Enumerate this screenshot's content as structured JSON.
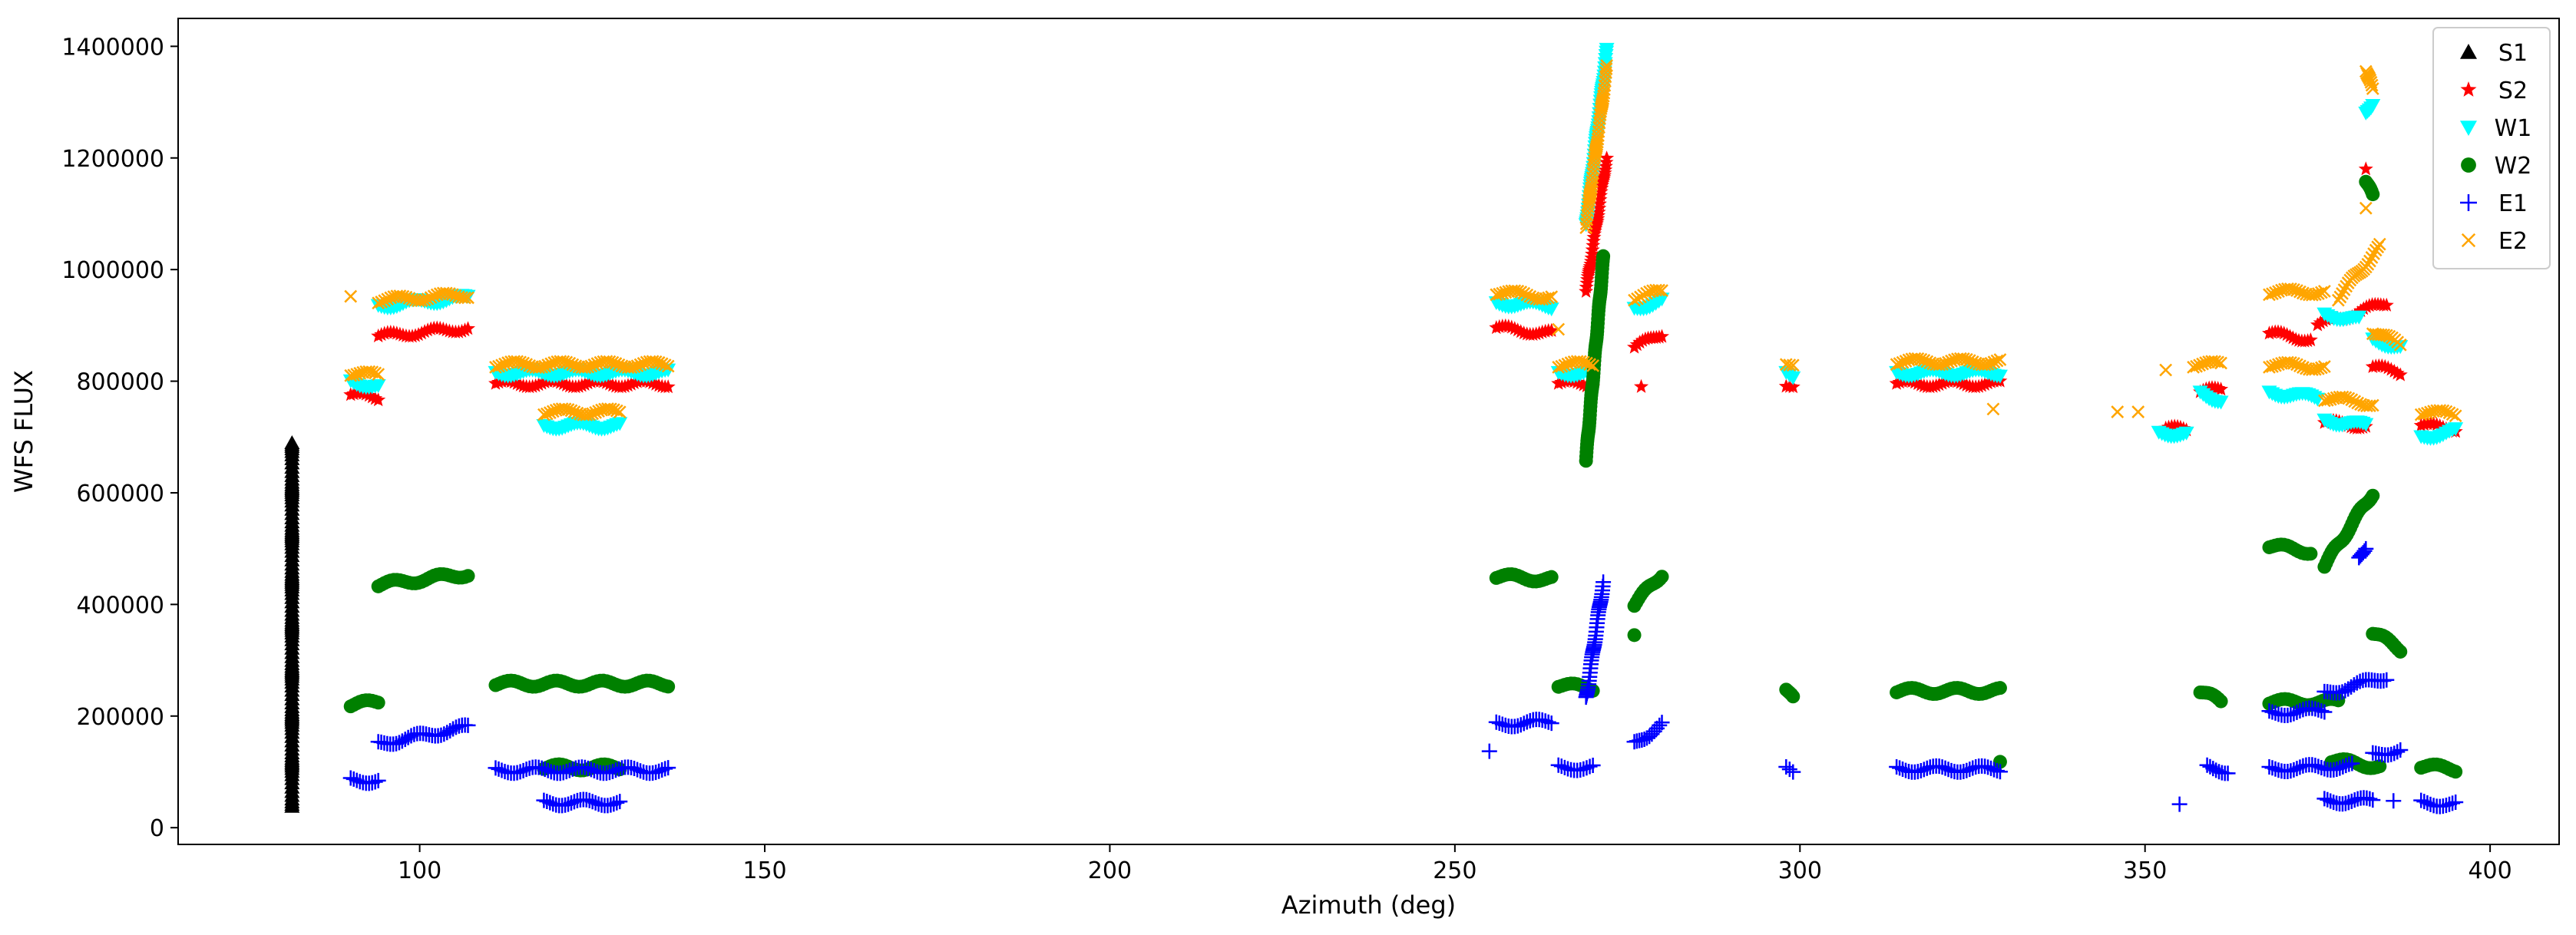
{
  "chart_data": {
    "type": "scatter",
    "title": "",
    "xlabel": "Azimuth (deg)",
    "ylabel": "WFS FLUX",
    "xlim": [
      65,
      410
    ],
    "ylim": [
      -30000,
      1450000
    ],
    "xticks": [
      100,
      150,
      200,
      250,
      300,
      350,
      400
    ],
    "yticks": [
      0,
      200000,
      400000,
      600000,
      800000,
      1000000,
      1200000,
      1400000
    ],
    "xtick_labels": [
      "100",
      "150",
      "200",
      "250",
      "300",
      "350",
      "400"
    ],
    "ytick_labels": [
      "0",
      "200000",
      "400000",
      "600000",
      "800000",
      "1000000",
      "1200000",
      "1400000"
    ],
    "grid": false,
    "legend_position": "top-right",
    "series": [
      {
        "name": "S1",
        "marker": "triangle-up",
        "color": "#000000",
        "segments": [
          {
            "x": [
              81.5,
              81.5
            ],
            "y": [
              40000,
              690000
            ]
          }
        ]
      },
      {
        "name": "S2",
        "marker": "star",
        "color": "#ff0000",
        "segments": [
          {
            "x": [
              90,
              94
            ],
            "y": [
              775000,
              770000
            ]
          },
          {
            "x": [
              94,
              107
            ],
            "y": [
              880000,
              895000
            ]
          },
          {
            "x": [
              111,
              136
            ],
            "y": [
              795000,
              795000
            ]
          },
          {
            "x": [
              256,
              264
            ],
            "y": [
              895000,
              885000
            ]
          },
          {
            "x": [
              265,
              270
            ],
            "y": [
              795000,
              795000
            ]
          },
          {
            "x": [
              269,
              272
            ],
            "y": [
              960000,
              1200000
            ]
          },
          {
            "x": [
              276,
              280
            ],
            "y": [
              860000,
              885000
            ]
          },
          {
            "x": [
              298,
              299
            ],
            "y": [
              790000,
              785000
            ]
          },
          {
            "x": [
              314,
              329
            ],
            "y": [
              795000,
              795000
            ]
          },
          {
            "x": [
              353,
              356
            ],
            "y": [
              715000,
              712000
            ]
          },
          {
            "x": [
              358,
              361
            ],
            "y": [
              780000,
              785000
            ]
          },
          {
            "x": [
              368,
              374
            ],
            "y": [
              885000,
              875000
            ]
          },
          {
            "x": [
              375,
              385
            ],
            "y": [
              900000,
              940000
            ]
          },
          {
            "x": [
              376,
              382
            ],
            "y": [
              725000,
              720000
            ]
          },
          {
            "x": [
              383,
              387
            ],
            "y": [
              825000,
              815000
            ]
          },
          {
            "x": [
              390,
              395
            ],
            "y": [
              720000,
              715000
            ]
          }
        ],
        "points": [
          {
            "x": 277,
            "y": 790000
          },
          {
            "x": 382,
            "y": 1180000
          }
        ]
      },
      {
        "name": "W1",
        "marker": "triangle-down",
        "color": "#00ffff",
        "segments": [
          {
            "x": [
              90,
              94
            ],
            "y": [
              800000,
              790000
            ]
          },
          {
            "x": [
              94,
              107
            ],
            "y": [
              935000,
              950000
            ]
          },
          {
            "x": [
              111,
              136
            ],
            "y": [
              815000,
              815000
            ]
          },
          {
            "x": [
              118,
              129
            ],
            "y": [
              720000,
              720000
            ]
          },
          {
            "x": [
              256,
              264
            ],
            "y": [
              940000,
              935000
            ]
          },
          {
            "x": [
              265,
              270
            ],
            "y": [
              815000,
              815000
            ]
          },
          {
            "x": [
              269,
              272
            ],
            "y": [
              1080000,
              1390000
            ]
          },
          {
            "x": [
              276,
              280
            ],
            "y": [
              930000,
              945000
            ]
          },
          {
            "x": [
              298,
              299
            ],
            "y": [
              815000,
              810000
            ]
          },
          {
            "x": [
              314,
              329
            ],
            "y": [
              815000,
              815000
            ]
          },
          {
            "x": [
              352,
              356
            ],
            "y": [
              708000,
              705000
            ]
          },
          {
            "x": [
              358,
              361
            ],
            "y": [
              780000,
              765000
            ]
          },
          {
            "x": [
              368,
              375
            ],
            "y": [
              780000,
              770000
            ]
          },
          {
            "x": [
              376,
              382
            ],
            "y": [
              730000,
              720000
            ]
          },
          {
            "x": [
              376,
              381
            ],
            "y": [
              920000,
              910000
            ]
          },
          {
            "x": [
              382,
              383
            ],
            "y": [
              1280000,
              1300000
            ]
          },
          {
            "x": [
              383,
              387
            ],
            "y": [
              875000,
              860000
            ]
          },
          {
            "x": [
              390,
              395
            ],
            "y": [
              700000,
              710000
            ]
          }
        ],
        "points": []
      },
      {
        "name": "W2",
        "marker": "circle",
        "color": "#008000",
        "segments": [
          {
            "x": [
              90,
              94
            ],
            "y": [
              220000,
              225000
            ]
          },
          {
            "x": [
              94,
              107
            ],
            "y": [
              435000,
              455000
            ]
          },
          {
            "x": [
              111,
              136
            ],
            "y": [
              258000,
              258000
            ]
          },
          {
            "x": [
              118,
              129
            ],
            "y": [
              108000,
              108000
            ]
          },
          {
            "x": [
              256,
              264
            ],
            "y": [
              450000,
              445000
            ]
          },
          {
            "x": [
              265,
              270
            ],
            "y": [
              255000,
              250000
            ]
          },
          {
            "x": [
              269,
              271.5
            ],
            "y": [
              660000,
              1020000
            ]
          },
          {
            "x": [
              276,
              280
            ],
            "y": [
              400000,
              455000
            ]
          },
          {
            "x": [
              298,
              299
            ],
            "y": [
              250000,
              230000
            ]
          },
          {
            "x": [
              314,
              329
            ],
            "y": [
              245000,
              245000
            ]
          },
          {
            "x": [
              358,
              361
            ],
            "y": [
              245000,
              225000
            ]
          },
          {
            "x": [
              368,
              374
            ],
            "y": [
              505000,
              495000
            ]
          },
          {
            "x": [
              368,
              378
            ],
            "y": [
              225000,
              225000
            ]
          },
          {
            "x": [
              376,
              383
            ],
            "y": [
              470000,
              600000
            ]
          },
          {
            "x": [
              377,
              384
            ],
            "y": [
              120000,
              110000
            ]
          },
          {
            "x": [
              382,
              383
            ],
            "y": [
              1160000,
              1130000
            ]
          },
          {
            "x": [
              383,
              387
            ],
            "y": [
              350000,
              320000
            ]
          },
          {
            "x": [
              390,
              395
            ],
            "y": [
              110000,
              105000
            ]
          }
        ],
        "points": [
          {
            "x": 276,
            "y": 345000
          },
          {
            "x": 329,
            "y": 118000
          }
        ]
      },
      {
        "name": "E1",
        "marker": "plus",
        "color": "#0000ff",
        "segments": [
          {
            "x": [
              90,
              94
            ],
            "y": [
              85000,
              85000
            ]
          },
          {
            "x": [
              94,
              107
            ],
            "y": [
              150000,
              180000
            ]
          },
          {
            "x": [
              111,
              136
            ],
            "y": [
              103000,
              103000
            ]
          },
          {
            "x": [
              118,
              129
            ],
            "y": [
              45000,
              45000
            ]
          },
          {
            "x": [
              256,
              264
            ],
            "y": [
              185000,
              190000
            ]
          },
          {
            "x": [
              265,
              270
            ],
            "y": [
              108000,
              108000
            ]
          },
          {
            "x": [
              269,
              271.5
            ],
            "y": [
              230000,
              440000
            ]
          },
          {
            "x": [
              276,
              280
            ],
            "y": [
              150000,
              185000
            ]
          },
          {
            "x": [
              298,
              299
            ],
            "y": [
              105000,
              100000
            ]
          },
          {
            "x": [
              314,
              329
            ],
            "y": [
              105000,
              105000
            ]
          },
          {
            "x": [
              359,
              362
            ],
            "y": [
              108000,
              102000
            ]
          },
          {
            "x": [
              368,
              376
            ],
            "y": [
              205000,
              210000
            ]
          },
          {
            "x": [
              368,
              380
            ],
            "y": [
              105000,
              110000
            ]
          },
          {
            "x": [
              376,
              385
            ],
            "y": [
              240000,
              270000
            ]
          },
          {
            "x": [
              376,
              383
            ],
            "y": [
              48000,
              48000
            ]
          },
          {
            "x": [
              381,
              382
            ],
            "y": [
              480000,
              505000
            ]
          },
          {
            "x": [
              383,
              387
            ],
            "y": [
              130000,
              140000
            ]
          },
          {
            "x": [
              390,
              395
            ],
            "y": [
              45000,
              42000
            ]
          }
        ],
        "points": [
          {
            "x": 255,
            "y": 137000
          },
          {
            "x": 355,
            "y": 42000
          },
          {
            "x": 386,
            "y": 48000
          }
        ]
      },
      {
        "name": "E2",
        "marker": "x",
        "color": "#ffa500",
        "segments": [
          {
            "x": [
              90,
              94
            ],
            "y": [
              815000,
              810000
            ]
          },
          {
            "x": [
              94,
              107
            ],
            "y": [
              945000,
              955000
            ]
          },
          {
            "x": [
              111,
              136
            ],
            "y": [
              830000,
              830000
            ]
          },
          {
            "x": [
              118,
              129
            ],
            "y": [
              745000,
              745000
            ]
          },
          {
            "x": [
              256,
              264
            ],
            "y": [
              960000,
              950000
            ]
          },
          {
            "x": [
              265,
              270
            ],
            "y": [
              830000,
              830000
            ]
          },
          {
            "x": [
              269,
              272
            ],
            "y": [
              1080000,
              1360000
            ]
          },
          {
            "x": [
              276,
              280
            ],
            "y": [
              950000,
              960000
            ]
          },
          {
            "x": [
              298,
              299
            ],
            "y": [
              835000,
              830000
            ]
          },
          {
            "x": [
              314,
              329
            ],
            "y": [
              835000,
              835000
            ]
          },
          {
            "x": [
              357,
              361
            ],
            "y": [
              830000,
              830000
            ]
          },
          {
            "x": [
              368,
              376
            ],
            "y": [
              960000,
              960000
            ]
          },
          {
            "x": [
              368,
              376
            ],
            "y": [
              830000,
              825000
            ]
          },
          {
            "x": [
              376,
              383
            ],
            "y": [
              770000,
              760000
            ]
          },
          {
            "x": [
              378,
              384
            ],
            "y": [
              950000,
              1040000
            ]
          },
          {
            "x": [
              382,
              383
            ],
            "y": [
              1360000,
              1320000
            ]
          },
          {
            "x": [
              383,
              387
            ],
            "y": [
              890000,
              865000
            ]
          },
          {
            "x": [
              390,
              395
            ],
            "y": [
              745000,
              740000
            ]
          }
        ],
        "points": [
          {
            "x": 90,
            "y": 952000
          },
          {
            "x": 265,
            "y": 893000
          },
          {
            "x": 328,
            "y": 750000
          },
          {
            "x": 346,
            "y": 745000
          },
          {
            "x": 349,
            "y": 745000
          },
          {
            "x": 353,
            "y": 820000
          },
          {
            "x": 382,
            "y": 1110000
          }
        ]
      }
    ]
  }
}
